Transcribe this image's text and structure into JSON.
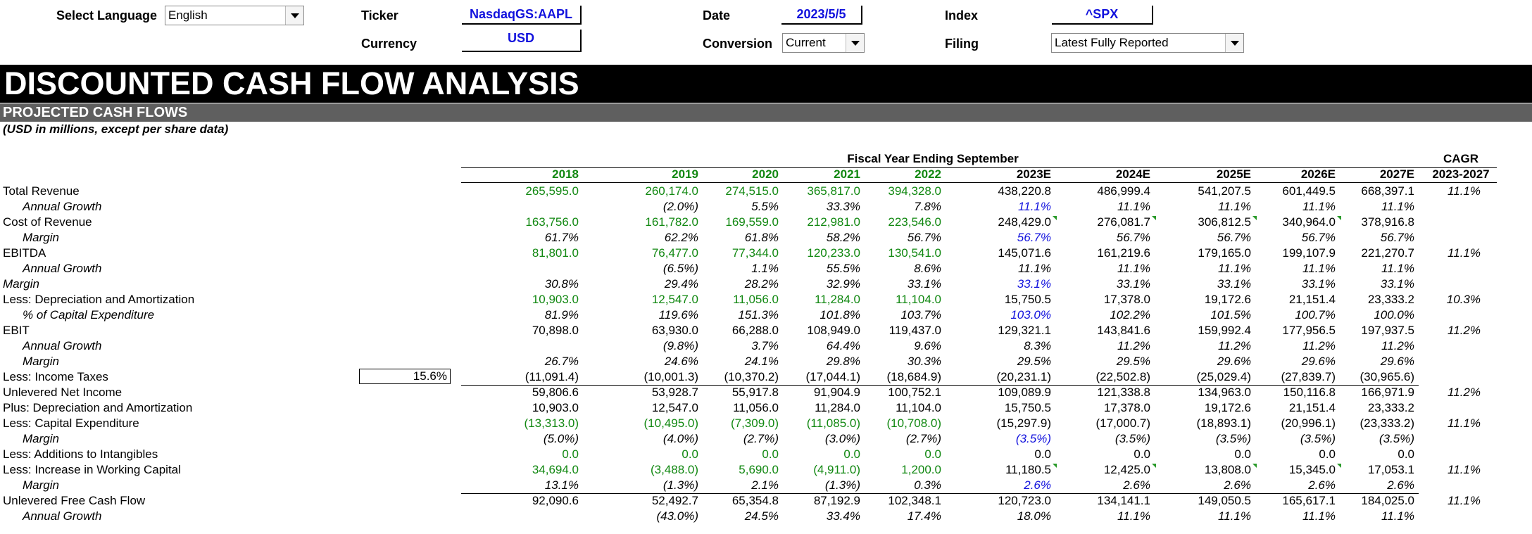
{
  "header": {
    "language": {
      "label": "Select Language",
      "value": "English"
    },
    "ticker": {
      "label": "Ticker",
      "value": "NasdaqGS:AAPL"
    },
    "currency": {
      "label": "Currency",
      "value": "USD"
    },
    "date": {
      "label": "Date",
      "value": "2023/5/5"
    },
    "conversion": {
      "label": "Conversion",
      "value": "Current"
    },
    "index": {
      "label": "Index",
      "value": "^SPX"
    },
    "filing": {
      "label": "Filing",
      "value": "Latest Fully Reported"
    }
  },
  "title": "DISCOUNTED CASH FLOW ANALYSIS",
  "section_title": "PROJECTED CASH FLOWS",
  "units_note": "(USD in millions, except per share data)",
  "fiscal_header": "Fiscal Year Ending September",
  "cagr_header": [
    "CAGR",
    "2023-2027"
  ],
  "years": [
    "2018",
    "2019",
    "2020",
    "2021",
    "2022",
    "2023E",
    "2024E",
    "2025E",
    "2026E",
    "2027E"
  ],
  "tax_rate": "15.6%",
  "colors": {
    "historical": "#118811",
    "input": "#1111dd",
    "banner": "#000000",
    "subbanner": "#5f5f5f"
  },
  "rows": [
    {
      "label": "Total Revenue",
      "indent": false,
      "values": [
        "265,595.0",
        "260,174.0",
        "274,515.0",
        "365,817.0",
        "394,328.0",
        "438,220.8",
        "486,999.4",
        "541,207.5",
        "601,449.5",
        "668,397.1"
      ],
      "cagr": "11.1%"
    },
    {
      "label": "Annual Growth",
      "indent": true,
      "values": [
        "",
        "(2.0%)",
        "5.5%",
        "33.3%",
        "7.8%",
        "11.1%",
        "11.1%",
        "11.1%",
        "11.1%",
        "11.1%"
      ],
      "cagr": ""
    },
    {
      "label": "Cost of Revenue",
      "indent": false,
      "values": [
        "163,756.0",
        "161,782.0",
        "169,559.0",
        "212,981.0",
        "223,546.0",
        "248,429.0",
        "276,081.7",
        "306,812.5",
        "340,964.0",
        "378,916.8"
      ],
      "cagr": ""
    },
    {
      "label": "Margin",
      "indent": true,
      "values": [
        "61.7%",
        "62.2%",
        "61.8%",
        "58.2%",
        "56.7%",
        "56.7%",
        "56.7%",
        "56.7%",
        "56.7%",
        "56.7%"
      ],
      "cagr": ""
    },
    {
      "label": "EBITDA",
      "indent": false,
      "values": [
        "81,801.0",
        "76,477.0",
        "77,344.0",
        "120,233.0",
        "130,541.0",
        "145,071.6",
        "161,219.6",
        "179,165.0",
        "199,107.9",
        "221,270.7"
      ],
      "cagr": "11.1%"
    },
    {
      "label": "Annual Growth",
      "indent": true,
      "values": [
        "",
        "(6.5%)",
        "1.1%",
        "55.5%",
        "8.6%",
        "11.1%",
        "11.1%",
        "11.1%",
        "11.1%",
        "11.1%"
      ],
      "cagr": ""
    },
    {
      "label": "Margin",
      "indent": false,
      "italic": true,
      "values": [
        "30.8%",
        "29.4%",
        "28.2%",
        "32.9%",
        "33.1%",
        "33.1%",
        "33.1%",
        "33.1%",
        "33.1%",
        "33.1%"
      ],
      "cagr": ""
    },
    {
      "label": "Less: Depreciation and Amortization",
      "indent": false,
      "values": [
        "10,903.0",
        "12,547.0",
        "11,056.0",
        "11,284.0",
        "11,104.0",
        "15,750.5",
        "17,378.0",
        "19,172.6",
        "21,151.4",
        "23,333.2"
      ],
      "cagr": "10.3%"
    },
    {
      "label": "% of Capital Expenditure",
      "indent": true,
      "values": [
        "81.9%",
        "119.6%",
        "151.3%",
        "101.8%",
        "103.7%",
        "103.0%",
        "102.2%",
        "101.5%",
        "100.7%",
        "100.0%"
      ],
      "cagr": ""
    },
    {
      "label": "EBIT",
      "indent": false,
      "values": [
        "70,898.0",
        "63,930.0",
        "66,288.0",
        "108,949.0",
        "119,437.0",
        "129,321.1",
        "143,841.6",
        "159,992.4",
        "177,956.5",
        "197,937.5"
      ],
      "cagr": "11.2%"
    },
    {
      "label": "Annual Growth",
      "indent": true,
      "values": [
        "",
        "(9.8%)",
        "3.7%",
        "64.4%",
        "9.6%",
        "8.3%",
        "11.2%",
        "11.2%",
        "11.2%",
        "11.2%"
      ],
      "cagr": ""
    },
    {
      "label": "Margin",
      "indent": true,
      "values": [
        "26.7%",
        "24.6%",
        "24.1%",
        "29.8%",
        "30.3%",
        "29.5%",
        "29.5%",
        "29.6%",
        "29.6%",
        "29.6%"
      ],
      "cagr": ""
    },
    {
      "label": "Less: Income Taxes",
      "indent": false,
      "values": [
        "(11,091.4)",
        "(10,001.3)",
        "(10,370.2)",
        "(17,044.1)",
        "(18,684.9)",
        "(20,231.1)",
        "(22,502.8)",
        "(25,029.4)",
        "(27,839.7)",
        "(30,965.6)"
      ],
      "cagr": ""
    },
    {
      "label": "Unlevered Net Income",
      "indent": false,
      "values": [
        "59,806.6",
        "53,928.7",
        "55,917.8",
        "91,904.9",
        "100,752.1",
        "109,089.9",
        "121,338.8",
        "134,963.0",
        "150,116.8",
        "166,971.9"
      ],
      "cagr": "11.2%"
    },
    {
      "label": "Plus: Depreciation and Amortization",
      "indent": false,
      "values": [
        "10,903.0",
        "12,547.0",
        "11,056.0",
        "11,284.0",
        "11,104.0",
        "15,750.5",
        "17,378.0",
        "19,172.6",
        "21,151.4",
        "23,333.2"
      ],
      "cagr": ""
    },
    {
      "label": "Less: Capital Expenditure",
      "indent": false,
      "values": [
        "(13,313.0)",
        "(10,495.0)",
        "(7,309.0)",
        "(11,085.0)",
        "(10,708.0)",
        "(15,297.9)",
        "(17,000.7)",
        "(18,893.1)",
        "(20,996.1)",
        "(23,333.2)"
      ],
      "cagr": "11.1%"
    },
    {
      "label": "Margin",
      "indent": true,
      "values": [
        "(5.0%)",
        "(4.0%)",
        "(2.7%)",
        "(3.0%)",
        "(2.7%)",
        "(3.5%)",
        "(3.5%)",
        "(3.5%)",
        "(3.5%)",
        "(3.5%)"
      ],
      "cagr": ""
    },
    {
      "label": "Less: Additions to Intangibles",
      "indent": false,
      "values": [
        "0.0",
        "0.0",
        "0.0",
        "0.0",
        "0.0",
        "0.0",
        "0.0",
        "0.0",
        "0.0",
        "0.0"
      ],
      "cagr": ""
    },
    {
      "label": "Less: Increase in Working Capital",
      "indent": false,
      "values": [
        "34,694.0",
        "(3,488.0)",
        "5,690.0",
        "(4,911.0)",
        "1,200.0",
        "11,180.5",
        "12,425.0",
        "13,808.0",
        "15,345.0",
        "17,053.1"
      ],
      "cagr": "11.1%"
    },
    {
      "label": "Margin",
      "indent": true,
      "values": [
        "13.1%",
        "(1.3%)",
        "2.1%",
        "(1.3%)",
        "0.3%",
        "2.6%",
        "2.6%",
        "2.6%",
        "2.6%",
        "2.6%"
      ],
      "cagr": ""
    },
    {
      "label": "Unlevered Free Cash Flow",
      "indent": false,
      "values": [
        "92,090.6",
        "52,492.7",
        "65,354.8",
        "87,192.9",
        "102,348.1",
        "120,723.0",
        "134,141.1",
        "149,050.5",
        "165,617.1",
        "184,025.0"
      ],
      "cagr": "11.1%"
    },
    {
      "label": "Annual Growth",
      "indent": true,
      "values": [
        "",
        "(43.0%)",
        "24.5%",
        "33.4%",
        "17.4%",
        "18.0%",
        "11.1%",
        "11.1%",
        "11.1%",
        "11.1%"
      ],
      "cagr": ""
    }
  ]
}
